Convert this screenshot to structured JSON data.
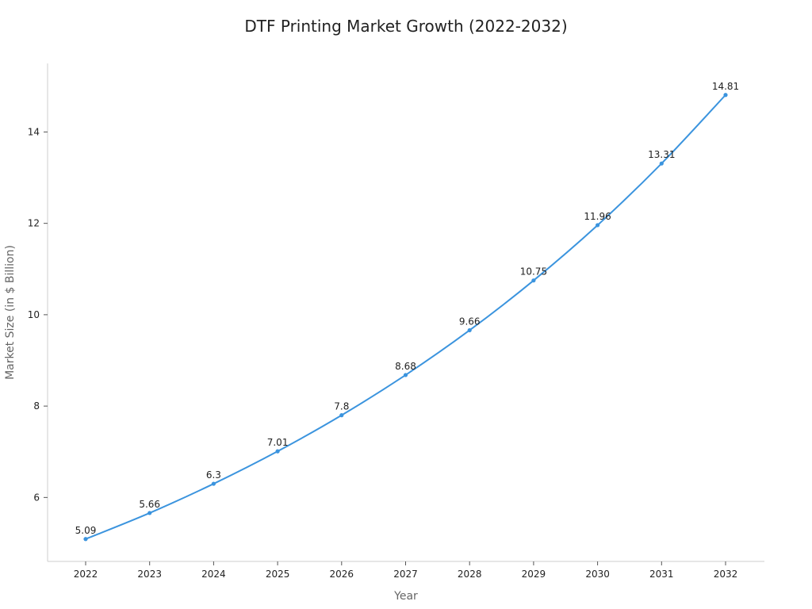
{
  "chart_data": {
    "type": "line",
    "title": "DTF Printing Market Growth (2022-2032)",
    "xlabel": "Year",
    "ylabel": "Market Size (in $ Billion)",
    "x": [
      2022,
      2023,
      2024,
      2025,
      2026,
      2027,
      2028,
      2029,
      2030,
      2031,
      2032
    ],
    "x_tick_labels": [
      "2022",
      "2023",
      "2024",
      "2025",
      "2026",
      "2027",
      "2028",
      "2029",
      "2030",
      "2031",
      "2032"
    ],
    "y_ticks": [
      6,
      8,
      10,
      12,
      14
    ],
    "y_tick_labels": [
      "6",
      "8",
      "10",
      "12",
      "14"
    ],
    "ylim": [
      4.6,
      15.5
    ],
    "grid": false,
    "series": [
      {
        "color": "#3b94de",
        "values": [
          5.09,
          5.66,
          6.3,
          7.01,
          7.8,
          8.68,
          9.66,
          10.75,
          11.96,
          13.31,
          14.81
        ],
        "labels": [
          "5.09",
          "5.66",
          "6.3",
          "7.01",
          "7.8",
          "8.68",
          "9.66",
          "10.75",
          "11.96",
          "13.31",
          "14.81"
        ]
      }
    ]
  }
}
